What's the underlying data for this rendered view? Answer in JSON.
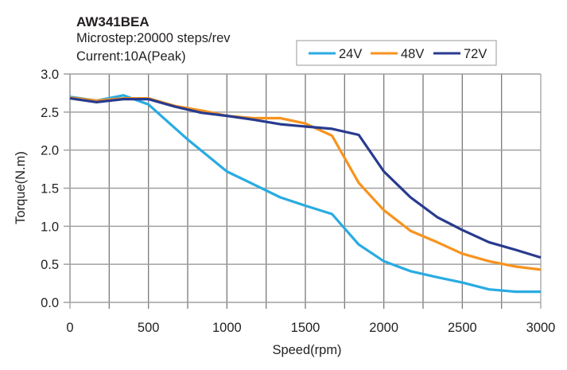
{
  "chart_data": {
    "type": "line",
    "title": "AW341BEA",
    "subtitles": [
      "Microstep:20000 steps/rev",
      "Current:10A(Peak)"
    ],
    "xlabel": "Speed(rpm)",
    "ylabel": "Torque(N.m)",
    "xlim": [
      0,
      3000
    ],
    "ylim": [
      0,
      3.0
    ],
    "x_ticks": [
      0,
      500,
      1000,
      1500,
      2000,
      2500,
      3000
    ],
    "x_tick_labels": [
      "0",
      "500",
      "1000",
      "1500",
      "2000",
      "2500",
      "3000"
    ],
    "x_minor_grid_step": 250,
    "y_ticks": [
      0,
      0.5,
      1.0,
      1.5,
      2.0,
      2.5,
      3.0
    ],
    "y_tick_labels": [
      "0.0",
      "0.5",
      "1.0",
      "1.5",
      "2.0",
      "2.5",
      "3.0"
    ],
    "grid": true,
    "legend_position": "top-right",
    "series": [
      {
        "name": "24V",
        "color": "#29abe2",
        "x": [
          0,
          170,
          340,
          500,
          750,
          1000,
          1170,
          1340,
          1500,
          1670,
          1840,
          2000,
          2170,
          2340,
          2500,
          2670,
          2840,
          3000
        ],
        "y": [
          2.7,
          2.65,
          2.72,
          2.6,
          2.14,
          1.72,
          1.55,
          1.38,
          1.27,
          1.16,
          0.76,
          0.54,
          0.41,
          0.33,
          0.26,
          0.17,
          0.14,
          0.14
        ]
      },
      {
        "name": "48V",
        "color": "#f7931e",
        "x": [
          0,
          170,
          340,
          500,
          670,
          840,
          1000,
          1170,
          1340,
          1500,
          1670,
          1840,
          2000,
          2170,
          2340,
          2500,
          2670,
          2840,
          3000
        ],
        "y": [
          2.69,
          2.65,
          2.68,
          2.68,
          2.58,
          2.52,
          2.45,
          2.42,
          2.42,
          2.35,
          2.19,
          1.57,
          1.21,
          0.94,
          0.79,
          0.64,
          0.54,
          0.47,
          0.43
        ]
      },
      {
        "name": "72V",
        "color": "#283b8f",
        "x": [
          0,
          170,
          340,
          500,
          670,
          840,
          1000,
          1170,
          1340,
          1500,
          1670,
          1840,
          2000,
          2170,
          2340,
          2500,
          2670,
          2840,
          3000
        ],
        "y": [
          2.68,
          2.63,
          2.67,
          2.67,
          2.57,
          2.49,
          2.45,
          2.4,
          2.34,
          2.31,
          2.28,
          2.2,
          1.72,
          1.38,
          1.12,
          0.95,
          0.79,
          0.69,
          0.59
        ]
      }
    ]
  }
}
